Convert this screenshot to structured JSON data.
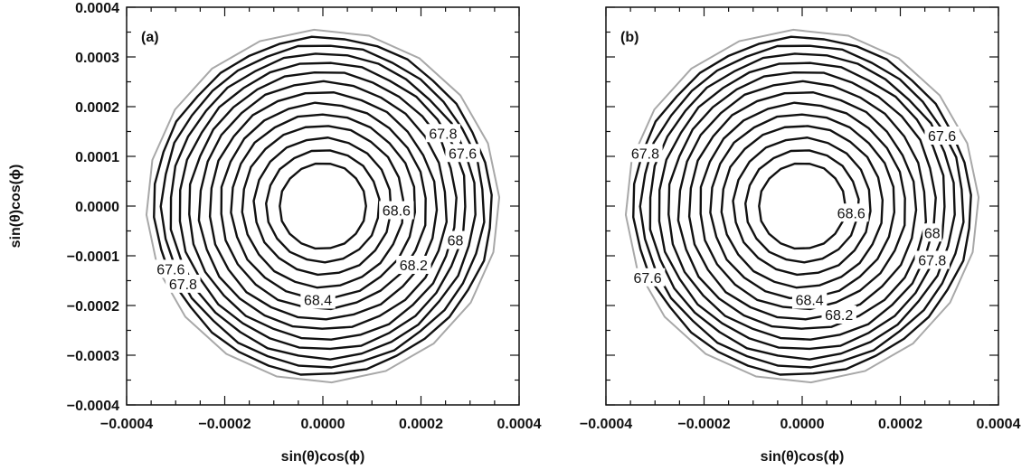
{
  "chart_data": [
    {
      "type": "contour",
      "panel_label": "(a)",
      "xlabel": "sin(θ)cos(ϕ)",
      "ylabel": "sin(θ)cos(ϕ)",
      "xlim": [
        -0.0004,
        0.0004
      ],
      "ylim": [
        -0.0004,
        0.0004
      ],
      "xticks": [
        "-0.0004",
        "-0.0002",
        "0.0000",
        "0.0002",
        "0.0004"
      ],
      "yticks": [
        "-0.0004",
        "-0.0003",
        "-0.0002",
        "-0.0001",
        "0.0000",
        "0.0001",
        "0.0002",
        "0.0003",
        "0.0004"
      ],
      "outer_boundary_radius": 0.00036,
      "contour_radii": [
        8.8e-05,
        0.000115,
        0.00014,
        0.000165,
        0.000188,
        0.00021,
        0.000232,
        0.000253,
        0.000273,
        0.000292,
        0.00031,
        0.000327,
        0.000343
      ],
      "contour_labels": [
        {
          "text": "67.8",
          "x": 0.000245,
          "y": 0.000145
        },
        {
          "text": "67.6",
          "x": 0.000285,
          "y": 0.000105
        },
        {
          "text": "68.6",
          "x": 0.00015,
          "y": -1e-05
        },
        {
          "text": "68",
          "x": 0.00027,
          "y": -7e-05
        },
        {
          "text": "68.2",
          "x": 0.000185,
          "y": -0.00012
        },
        {
          "text": "67.6",
          "x": -0.00031,
          "y": -0.000128
        },
        {
          "text": "67.8",
          "x": -0.000285,
          "y": -0.000158
        },
        {
          "text": "68.4",
          "x": -1e-05,
          "y": -0.00019
        }
      ],
      "grid": false
    },
    {
      "type": "contour",
      "panel_label": "(b)",
      "xlabel": "sin(θ)cos(ϕ)",
      "ylabel": "",
      "xlim": [
        -0.0004,
        0.0004
      ],
      "ylim": [
        -0.0004,
        0.0004
      ],
      "xticks": [
        "-0.0004",
        "-0.0002",
        "0.0000",
        "0.0002",
        "0.0004"
      ],
      "yticks": [],
      "outer_boundary_radius": 0.00036,
      "contour_radii": [
        8.8e-05,
        0.000115,
        0.00014,
        0.000165,
        0.000188,
        0.00021,
        0.000232,
        0.000253,
        0.000273,
        0.000292,
        0.00031,
        0.000327,
        0.000343
      ],
      "contour_labels": [
        {
          "text": "67.6",
          "x": 0.000285,
          "y": 0.00014
        },
        {
          "text": "67.8",
          "x": -0.00032,
          "y": 0.000105
        },
        {
          "text": "68.6",
          "x": 0.0001,
          "y": -1.5e-05
        },
        {
          "text": "68",
          "x": 0.000265,
          "y": -5.5e-05
        },
        {
          "text": "67.8",
          "x": 0.000265,
          "y": -0.00011
        },
        {
          "text": "67.6",
          "x": -0.000315,
          "y": -0.000145
        },
        {
          "text": "68.4",
          "x": 1.5e-05,
          "y": -0.00019
        },
        {
          "text": "68.2",
          "x": 7.5e-05,
          "y": -0.00022
        }
      ],
      "grid": false
    }
  ]
}
